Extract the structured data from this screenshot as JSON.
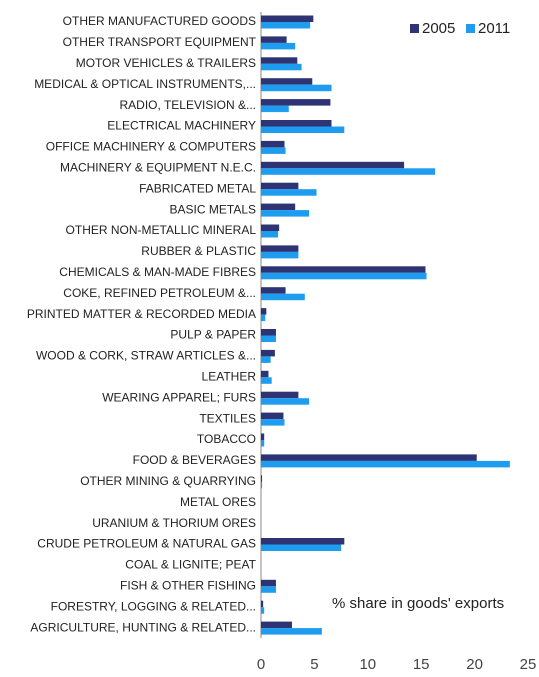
{
  "chart_data": {
    "type": "bar",
    "orientation": "horizontal",
    "categories": [
      "OTHER MANUFACTURED GOODS",
      "OTHER TRANSPORT EQUIPMENT",
      "MOTOR VEHICLES & TRAILERS",
      "MEDICAL & OPTICAL INSTRUMENTS,...",
      "RADIO, TELEVISION &...",
      "ELECTRICAL MACHINERY",
      "OFFICE MACHINERY & COMPUTERS",
      "MACHINERY & EQUIPMENT N.E.C.",
      "FABRICATED METAL",
      "BASIC METALS",
      "OTHER NON-METALLIC MINERAL",
      "RUBBER & PLASTIC",
      "CHEMICALS & MAN-MADE FIBRES",
      "COKE, REFINED PETROLEUM &...",
      "PRINTED MATTER & RECORDED MEDIA",
      "PULP & PAPER",
      "WOOD & CORK, STRAW ARTICLES &...",
      "LEATHER",
      "WEARING APPAREL; FURS",
      "TEXTILES",
      "TOBACCO",
      "FOOD & BEVERAGES",
      "OTHER MINING & QUARRYING",
      "METAL ORES",
      "URANIUM & THORIUM ORES",
      "CRUDE PETROLEUM & NATURAL GAS",
      "COAL & LIGNITE; PEAT",
      "FISH & OTHER FISHING",
      "FORESTRY, LOGGING & RELATED...",
      "AGRICULTURE, HUNTING & RELATED..."
    ],
    "series": [
      {
        "name": "2005",
        "color": "#2e3473",
        "values": [
          4.9,
          2.4,
          3.4,
          4.8,
          6.5,
          6.6,
          2.2,
          13.4,
          3.5,
          3.2,
          1.7,
          3.5,
          15.4,
          2.3,
          0.5,
          1.4,
          1.3,
          0.7,
          3.5,
          2.1,
          0.3,
          20.2,
          0.1,
          0,
          0,
          7.8,
          0,
          1.4,
          0.2,
          2.9
        ]
      },
      {
        "name": "2011",
        "color": "#1e9cf0",
        "values": [
          4.6,
          3.2,
          3.8,
          6.6,
          2.6,
          7.8,
          2.3,
          16.3,
          5.2,
          4.5,
          1.6,
          3.5,
          15.5,
          4.1,
          0.4,
          1.4,
          0.9,
          1.0,
          4.5,
          2.2,
          0.3,
          23.3,
          0.1,
          0,
          0,
          7.5,
          0,
          1.4,
          0.3,
          5.7
        ]
      }
    ],
    "xlim": [
      0,
      25
    ],
    "xticks": [
      0,
      5,
      10,
      15,
      20,
      25
    ],
    "annotation": "% share in goods' exports",
    "legend": "top-right"
  }
}
